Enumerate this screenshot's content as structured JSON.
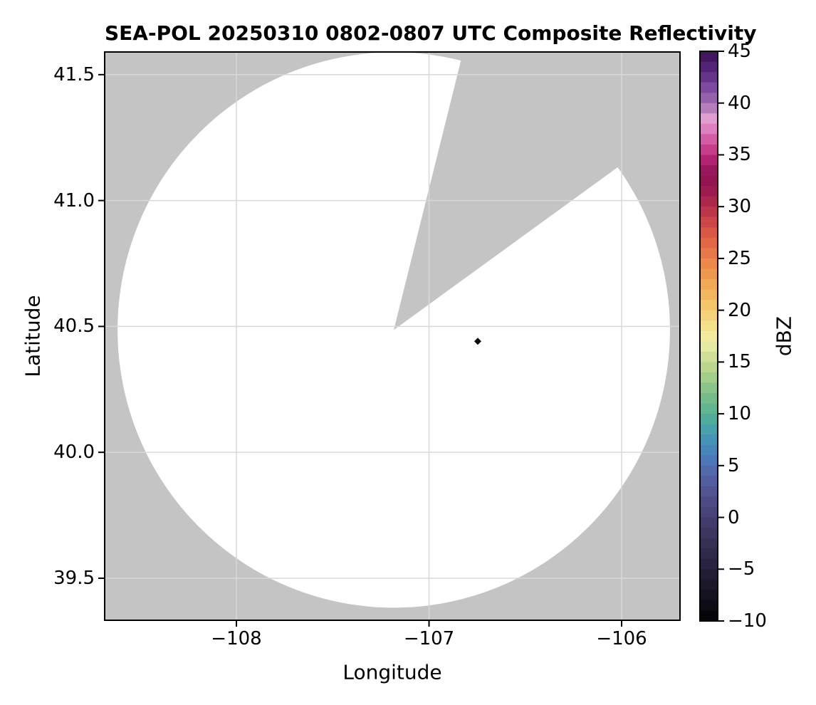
{
  "chart_data": {
    "type": "heatmap",
    "title": "SEA-POL 20250310 0802-0807 UTC Composite Reflectivity",
    "xlabel": "Longitude",
    "ylabel": "Latitude",
    "xlim": [
      -108.684,
      -105.697
    ],
    "ylim": [
      39.333,
      41.59
    ],
    "grid": true,
    "grid_color": "#d8d8d8",
    "xticks": {
      "values": [
        -108,
        -107,
        -106
      ],
      "labels": [
        "−108",
        "−107",
        "−106"
      ]
    },
    "yticks": {
      "values": [
        41.5,
        41.0,
        40.5,
        40.0,
        39.5
      ],
      "labels": [
        "41.5",
        "41.0",
        "40.5",
        "40.0",
        "39.5"
      ]
    },
    "radar_coverage": {
      "center_lon": -107.183,
      "center_lat": 40.486,
      "radius_lon_deg": 1.434,
      "radius_lat_deg": 1.103,
      "missing_sector_azimuth_deg": [
        14,
        54
      ],
      "scanned_fill": "#ffffff",
      "nodata_fill": "#c4c4c4"
    },
    "echoes": [
      {
        "lon": -106.747,
        "lat": 40.441,
        "dbz_estimate": -8,
        "color": "#0b0b16"
      }
    ],
    "colorbar": {
      "label": "dBZ",
      "min": -10,
      "max": 45,
      "step_dbz": 1,
      "ticks": [
        45,
        40,
        35,
        30,
        25,
        20,
        15,
        10,
        5,
        0,
        -5,
        -10
      ],
      "tick_labels": [
        "45",
        "40",
        "35",
        "30",
        "25",
        "20",
        "15",
        "10",
        "5",
        "0",
        "−5",
        "−10"
      ],
      "stops": [
        [
          -10,
          "#020203"
        ],
        [
          -8,
          "#120f1a"
        ],
        [
          -6,
          "#1f1a2e"
        ],
        [
          -4,
          "#2c2644"
        ],
        [
          -2,
          "#39335b"
        ],
        [
          0,
          "#453f72"
        ],
        [
          2,
          "#514e8c"
        ],
        [
          4,
          "#5463a6"
        ],
        [
          6,
          "#4a7fbc"
        ],
        [
          8,
          "#439bb2"
        ],
        [
          10,
          "#57b194"
        ],
        [
          12,
          "#7fc088"
        ],
        [
          14,
          "#afd18a"
        ],
        [
          16,
          "#d9e59a"
        ],
        [
          17,
          "#f0efa9"
        ],
        [
          19,
          "#f5d981"
        ],
        [
          21,
          "#f3bd63"
        ],
        [
          23,
          "#ef9f51"
        ],
        [
          25,
          "#e98048"
        ],
        [
          27,
          "#df5f42"
        ],
        [
          29,
          "#c53d4a"
        ],
        [
          31,
          "#a2204f"
        ],
        [
          33,
          "#8c1153"
        ],
        [
          34.5,
          "#b32371"
        ],
        [
          36,
          "#d04a96"
        ],
        [
          37.5,
          "#dd7fc0"
        ],
        [
          38.5,
          "#e09fd1"
        ],
        [
          40,
          "#a06cb2"
        ],
        [
          41.5,
          "#7c4a9e"
        ],
        [
          43,
          "#5b2b80"
        ],
        [
          45,
          "#3a1054"
        ]
      ]
    }
  }
}
